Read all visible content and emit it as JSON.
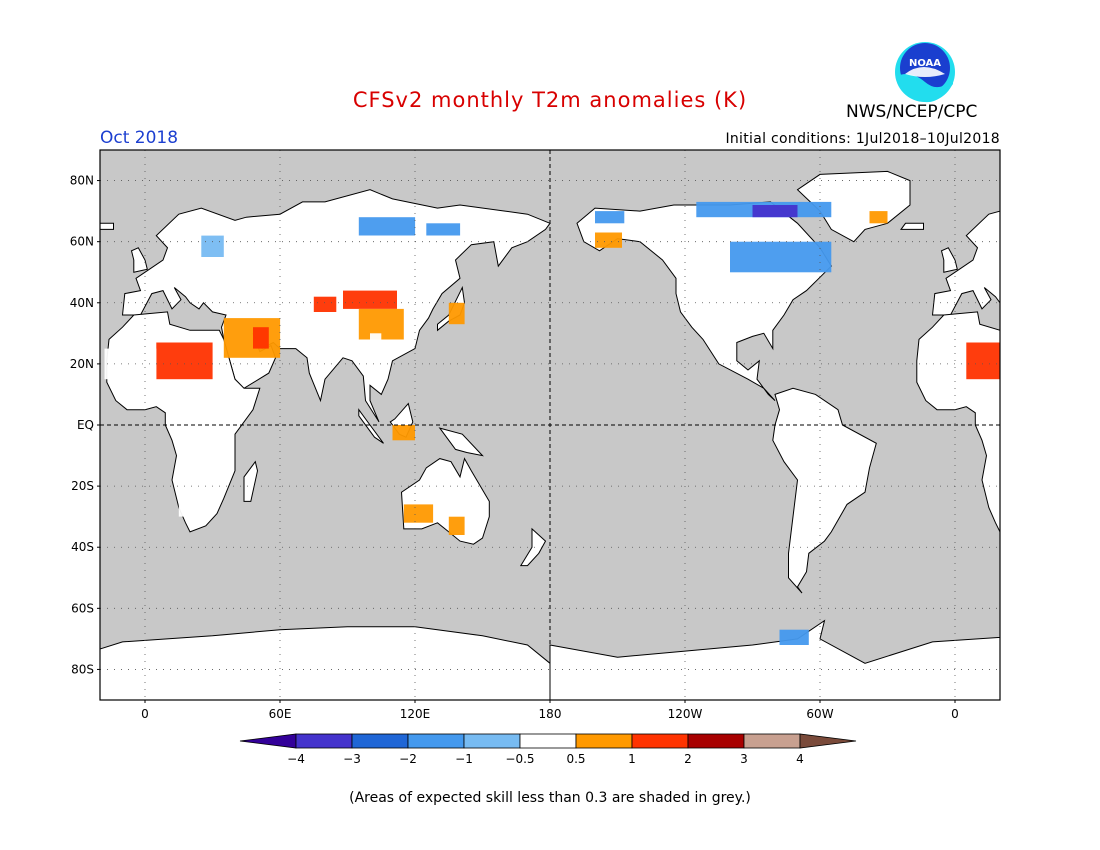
{
  "header": {
    "title": "CFSv2 monthly T2m anomalies (K)",
    "month": "Oct 2018",
    "initial_conditions": "Initial conditions: 1Jul2018–10Jul2018",
    "organization": "NWS/NCEP/CPC",
    "logo_text": "NOAA"
  },
  "map": {
    "projection": "equirectangular",
    "land_color": "#ffffff",
    "ocean_color": "#c8c8c8",
    "lat_labels": [
      "80N",
      "60N",
      "40N",
      "20N",
      "EQ",
      "20S",
      "40S",
      "60S",
      "80S"
    ],
    "lat_values": [
      80,
      60,
      40,
      20,
      0,
      -20,
      -40,
      -60,
      -80
    ],
    "lon_labels": [
      "0",
      "60E",
      "120E",
      "180",
      "120W",
      "60W",
      "0"
    ],
    "lon_values": [
      0,
      60,
      120,
      180,
      240,
      300,
      360
    ],
    "lon_range": [
      -20,
      380
    ],
    "lat_range": [
      -90,
      90
    ],
    "grid": "dotted",
    "dashed_lines": [
      "equator",
      "dateline"
    ]
  },
  "anomaly_regions": [
    {
      "lon": [
        5,
        30
      ],
      "lat": [
        15,
        27
      ],
      "color": "#ff3300"
    },
    {
      "lon": [
        365,
        380
      ],
      "lat": [
        15,
        27
      ],
      "color": "#ff3300"
    },
    {
      "lon": [
        -18,
        5
      ],
      "lat": [
        15,
        25
      ],
      "color": "#ffffff"
    },
    {
      "lon": [
        35,
        60
      ],
      "lat": [
        22,
        35
      ],
      "color": "#ff9900"
    },
    {
      "lon": [
        48,
        55
      ],
      "lat": [
        25,
        32
      ],
      "color": "#ff3300"
    },
    {
      "lon": [
        75,
        85
      ],
      "lat": [
        37,
        42
      ],
      "color": "#ff3300"
    },
    {
      "lon": [
        88,
        112
      ],
      "lat": [
        38,
        44
      ],
      "color": "#ff3300"
    },
    {
      "lon": [
        95,
        115
      ],
      "lat": [
        28,
        38
      ],
      "color": "#ff9900"
    },
    {
      "lon": [
        135,
        142
      ],
      "lat": [
        33,
        40
      ],
      "color": "#ff9900"
    },
    {
      "lon": [
        110,
        120
      ],
      "lat": [
        -5,
        0
      ],
      "color": "#ff9900"
    },
    {
      "lon": [
        115,
        128
      ],
      "lat": [
        -32,
        -26
      ],
      "color": "#ff9900"
    },
    {
      "lon": [
        135,
        142
      ],
      "lat": [
        -36,
        -30
      ],
      "color": "#ff9900"
    },
    {
      "lon": [
        200,
        212
      ],
      "lat": [
        58,
        63
      ],
      "color": "#ff9900"
    },
    {
      "lon": [
        322,
        330
      ],
      "lat": [
        66,
        70
      ],
      "color": "#ff9900"
    },
    {
      "lon": [
        95,
        120
      ],
      "lat": [
        62,
        68
      ],
      "color": "#4499ee"
    },
    {
      "lon": [
        125,
        140
      ],
      "lat": [
        62,
        66
      ],
      "color": "#4499ee"
    },
    {
      "lon": [
        200,
        213
      ],
      "lat": [
        66,
        70
      ],
      "color": "#4499ee"
    },
    {
      "lon": [
        245,
        305
      ],
      "lat": [
        68,
        73
      ],
      "color": "#4499ee"
    },
    {
      "lon": [
        270,
        290
      ],
      "lat": [
        68,
        72
      ],
      "color": "#4433cc"
    },
    {
      "lon": [
        260,
        305
      ],
      "lat": [
        50,
        60
      ],
      "color": "#4499ee"
    },
    {
      "lon": [
        25,
        35
      ],
      "lat": [
        55,
        62
      ],
      "color": "#77bbf2"
    },
    {
      "lon": [
        100,
        105
      ],
      "lat": [
        20,
        30
      ],
      "color": "#ffffff"
    },
    {
      "lon": [
        290,
        305
      ],
      "lat": [
        -5,
        0
      ],
      "color": "#ffffff"
    },
    {
      "lon": [
        290,
        298
      ],
      "lat": [
        -40,
        -30
      ],
      "color": "#ffffff"
    },
    {
      "lon": [
        282,
        295
      ],
      "lat": [
        -72,
        -67
      ],
      "color": "#4499ee"
    },
    {
      "lon": [
        15,
        30
      ],
      "lat": [
        -10,
        0
      ],
      "color": "#ffffff"
    },
    {
      "lon": [
        15,
        30
      ],
      "lat": [
        -30,
        -22
      ],
      "color": "#ffffff"
    }
  ],
  "colorbar": {
    "ticks": [
      "−4",
      "−3",
      "−2",
      "−1",
      "−0.5",
      "0.5",
      "1",
      "2",
      "3",
      "4"
    ],
    "colors": [
      "#330099",
      "#4433cc",
      "#1f66d6",
      "#4499ee",
      "#77bbf2",
      "#ffffff",
      "#ff9900",
      "#ff3300",
      "#a80000",
      "#c8a090",
      "#7a4a3a"
    ],
    "left_arrow_color": "#330099",
    "right_arrow_color": "#7a4a3a"
  },
  "footnote": "(Areas of expected skill less than 0.3 are shaded in grey.)"
}
